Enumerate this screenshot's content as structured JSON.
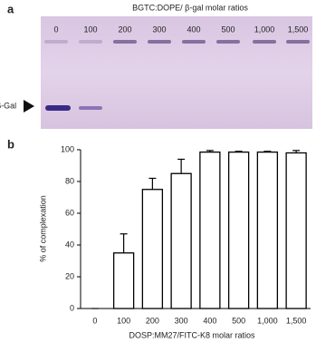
{
  "panel_a": {
    "label": "a",
    "title": "BGTC:DOPE/ β-gal molar ratios",
    "lanes": [
      "0",
      "100",
      "200",
      "300",
      "400",
      "500",
      "1,000",
      "1,500"
    ],
    "band_label": "β-Gal"
  },
  "chart_data": {
    "type": "bar",
    "panel_label": "b",
    "xlabel": "DOSP:MM27/FITC-K8 molar ratios",
    "ylabel": "% of complexation",
    "categories": [
      "0",
      "100",
      "200",
      "300",
      "400",
      "500",
      "1,000",
      "1,500"
    ],
    "values": [
      0,
      35,
      75,
      85,
      98.5,
      98.5,
      98.5,
      98
    ],
    "errors": [
      0,
      12,
      7,
      9,
      1,
      0.5,
      0.5,
      1.5
    ],
    "color": "#ffffff",
    "ylim": [
      0,
      100
    ],
    "yticks": [
      0,
      20,
      40,
      60,
      80,
      100
    ]
  }
}
